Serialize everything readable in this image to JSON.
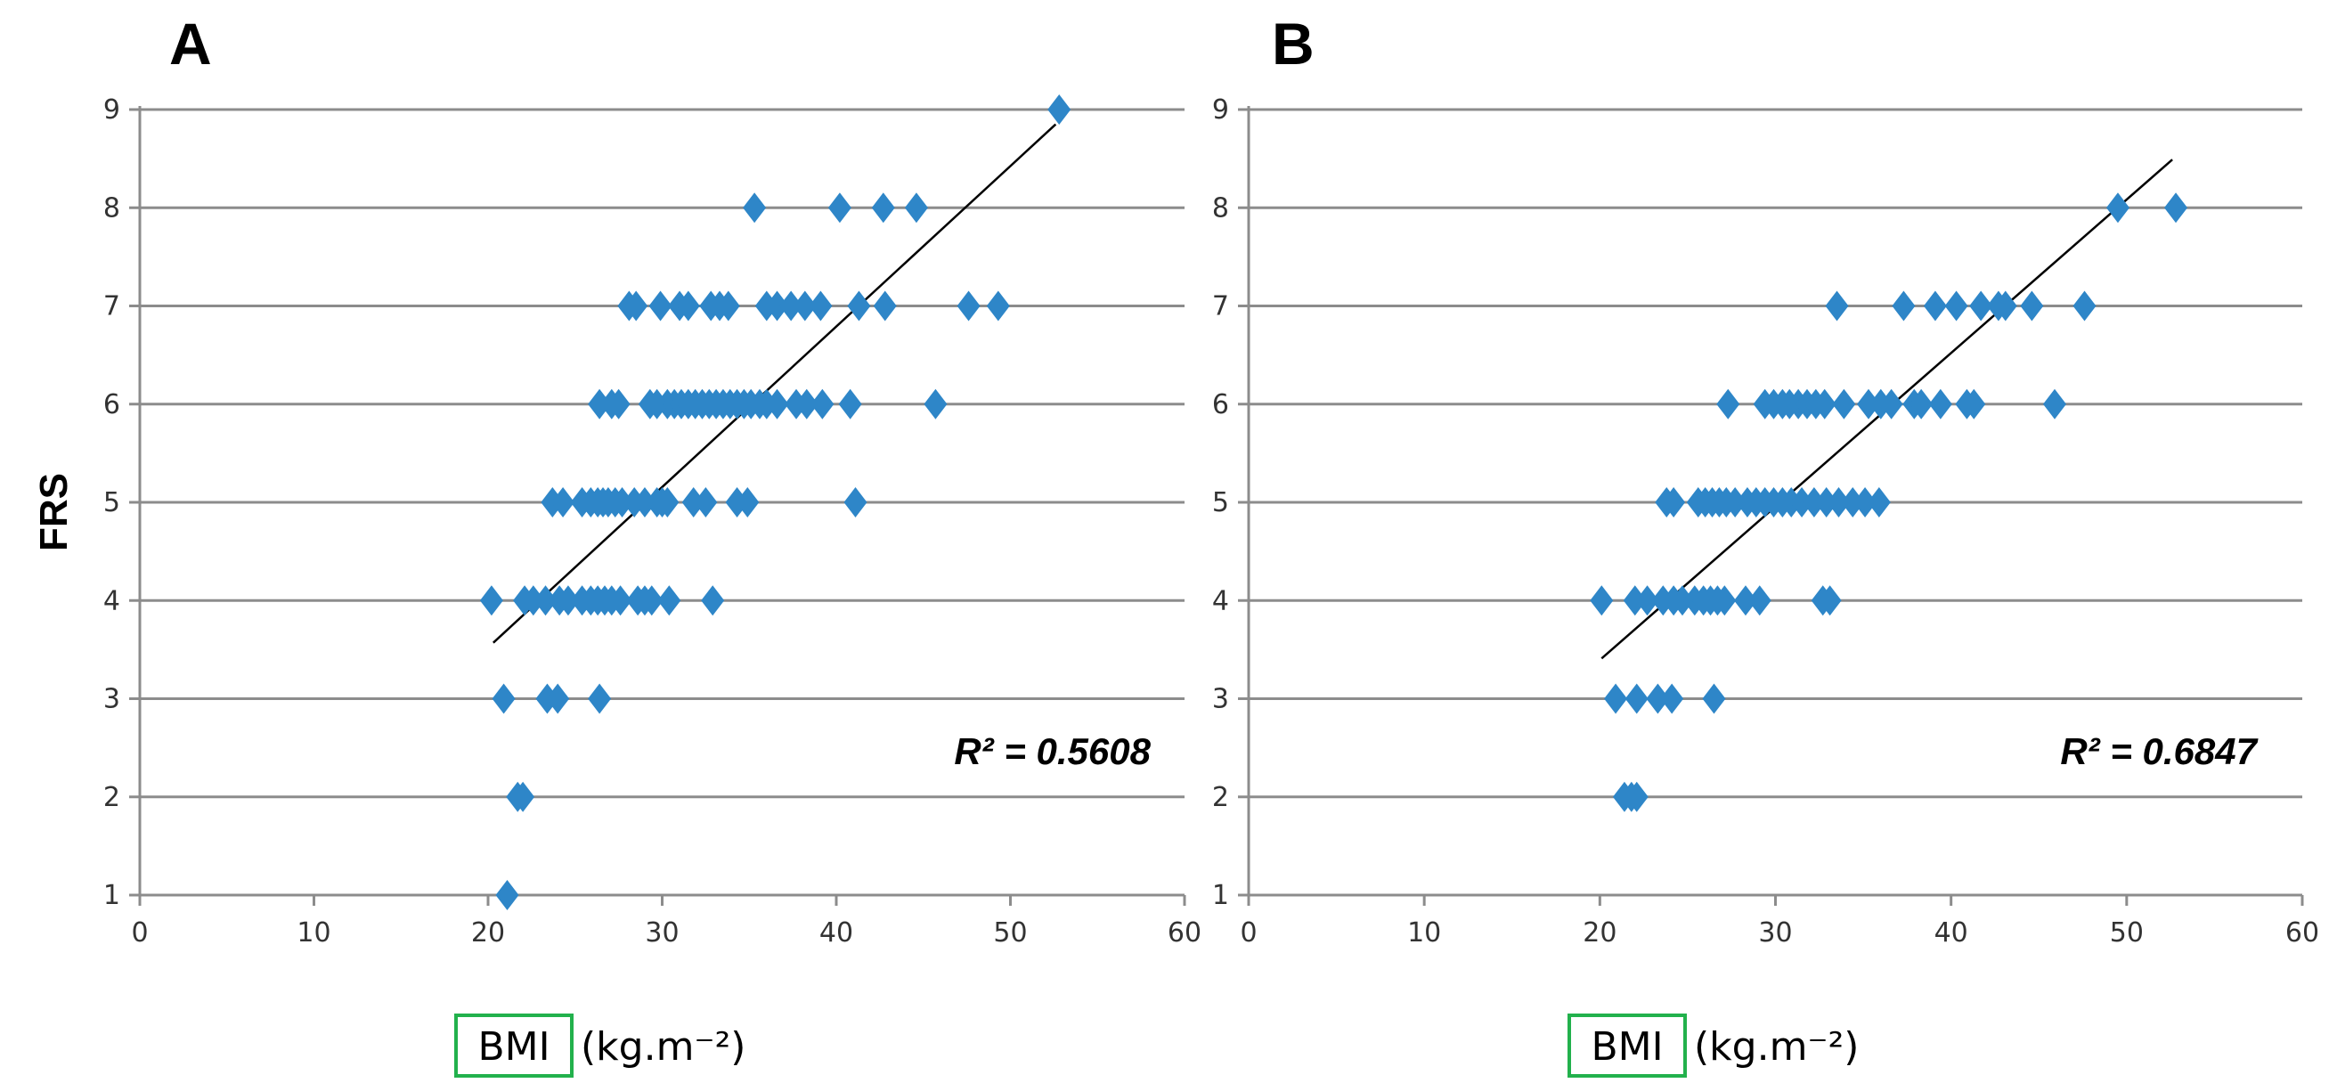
{
  "figure": {
    "y_axis_title": "FRS",
    "marker_color": "#2e86c8",
    "trendline_color": "#000000",
    "x_title_box_color": "#22b14c"
  },
  "chart_data": [
    {
      "type": "scatter",
      "panel": "A",
      "title": "A",
      "xlabel_boxed": "BMI",
      "xlabel_unit": "(kg.m⁻²)",
      "ylabel": "FRS",
      "xlim": [
        0,
        60
      ],
      "ylim": [
        1,
        9
      ],
      "xticks": [
        "0",
        "10",
        "20",
        "30",
        "40",
        "50",
        "60"
      ],
      "yticks": [
        "1",
        "2",
        "3",
        "4",
        "5",
        "6",
        "7",
        "8",
        "9"
      ],
      "grid": "horizontal",
      "r2_label": "R² = 0.5608",
      "trendline": {
        "x": [
          20.3,
          52.6
        ],
        "y": [
          3.57,
          8.85
        ]
      },
      "points": [
        {
          "x": 21.1,
          "y": 1
        },
        {
          "x": 21.7,
          "y": 2
        },
        {
          "x": 22.0,
          "y": 2
        },
        {
          "x": 20.9,
          "y": 3
        },
        {
          "x": 23.4,
          "y": 3
        },
        {
          "x": 24.0,
          "y": 3
        },
        {
          "x": 26.4,
          "y": 3
        },
        {
          "x": 20.2,
          "y": 4
        },
        {
          "x": 22.1,
          "y": 4
        },
        {
          "x": 22.6,
          "y": 4
        },
        {
          "x": 23.3,
          "y": 4
        },
        {
          "x": 24.1,
          "y": 4
        },
        {
          "x": 24.6,
          "y": 4
        },
        {
          "x": 25.4,
          "y": 4
        },
        {
          "x": 25.9,
          "y": 4
        },
        {
          "x": 26.3,
          "y": 4
        },
        {
          "x": 26.7,
          "y": 4
        },
        {
          "x": 27.1,
          "y": 4
        },
        {
          "x": 27.6,
          "y": 4
        },
        {
          "x": 28.6,
          "y": 4
        },
        {
          "x": 29.0,
          "y": 4
        },
        {
          "x": 29.4,
          "y": 4
        },
        {
          "x": 30.4,
          "y": 4
        },
        {
          "x": 32.9,
          "y": 4
        },
        {
          "x": 23.7,
          "y": 5
        },
        {
          "x": 24.3,
          "y": 5
        },
        {
          "x": 25.4,
          "y": 5
        },
        {
          "x": 25.9,
          "y": 5
        },
        {
          "x": 26.3,
          "y": 5
        },
        {
          "x": 26.6,
          "y": 5
        },
        {
          "x": 26.9,
          "y": 5
        },
        {
          "x": 27.3,
          "y": 5
        },
        {
          "x": 27.7,
          "y": 5
        },
        {
          "x": 28.4,
          "y": 5
        },
        {
          "x": 29.0,
          "y": 5
        },
        {
          "x": 29.7,
          "y": 5
        },
        {
          "x": 30.0,
          "y": 5
        },
        {
          "x": 30.3,
          "y": 5
        },
        {
          "x": 31.8,
          "y": 5
        },
        {
          "x": 32.5,
          "y": 5
        },
        {
          "x": 34.3,
          "y": 5
        },
        {
          "x": 34.9,
          "y": 5
        },
        {
          "x": 41.1,
          "y": 5
        },
        {
          "x": 26.4,
          "y": 6
        },
        {
          "x": 27.1,
          "y": 6
        },
        {
          "x": 27.5,
          "y": 6
        },
        {
          "x": 29.3,
          "y": 6
        },
        {
          "x": 29.7,
          "y": 6
        },
        {
          "x": 30.3,
          "y": 6
        },
        {
          "x": 30.7,
          "y": 6
        },
        {
          "x": 31.1,
          "y": 6
        },
        {
          "x": 31.5,
          "y": 6
        },
        {
          "x": 31.9,
          "y": 6
        },
        {
          "x": 32.3,
          "y": 6
        },
        {
          "x": 32.7,
          "y": 6
        },
        {
          "x": 33.1,
          "y": 6
        },
        {
          "x": 33.5,
          "y": 6
        },
        {
          "x": 33.9,
          "y": 6
        },
        {
          "x": 34.3,
          "y": 6
        },
        {
          "x": 34.7,
          "y": 6
        },
        {
          "x": 35.1,
          "y": 6
        },
        {
          "x": 35.6,
          "y": 6
        },
        {
          "x": 36.0,
          "y": 6
        },
        {
          "x": 36.6,
          "y": 6
        },
        {
          "x": 37.7,
          "y": 6
        },
        {
          "x": 38.3,
          "y": 6
        },
        {
          "x": 39.2,
          "y": 6
        },
        {
          "x": 40.8,
          "y": 6
        },
        {
          "x": 45.7,
          "y": 6
        },
        {
          "x": 28.1,
          "y": 7
        },
        {
          "x": 28.5,
          "y": 7
        },
        {
          "x": 29.9,
          "y": 7
        },
        {
          "x": 31.0,
          "y": 7
        },
        {
          "x": 31.5,
          "y": 7
        },
        {
          "x": 32.8,
          "y": 7
        },
        {
          "x": 33.3,
          "y": 7
        },
        {
          "x": 33.8,
          "y": 7
        },
        {
          "x": 36.0,
          "y": 7
        },
        {
          "x": 36.6,
          "y": 7
        },
        {
          "x": 37.4,
          "y": 7
        },
        {
          "x": 38.2,
          "y": 7
        },
        {
          "x": 39.1,
          "y": 7
        },
        {
          "x": 41.3,
          "y": 7
        },
        {
          "x": 42.8,
          "y": 7
        },
        {
          "x": 47.6,
          "y": 7
        },
        {
          "x": 49.3,
          "y": 7
        },
        {
          "x": 35.3,
          "y": 8
        },
        {
          "x": 40.2,
          "y": 8
        },
        {
          "x": 42.7,
          "y": 8
        },
        {
          "x": 44.6,
          "y": 8
        },
        {
          "x": 52.8,
          "y": 9
        }
      ]
    },
    {
      "type": "scatter",
      "panel": "B",
      "title": "B",
      "xlabel_boxed": "BMI",
      "xlabel_unit": "(kg.m⁻²)",
      "ylabel": "FRS",
      "xlim": [
        0,
        60
      ],
      "ylim": [
        1,
        9
      ],
      "xticks": [
        "0",
        "10",
        "20",
        "30",
        "40",
        "50",
        "60"
      ],
      "yticks": [
        "1",
        "2",
        "3",
        "4",
        "5",
        "6",
        "7",
        "8",
        "9"
      ],
      "grid": "horizontal",
      "r2_label": "R² = 0.6847",
      "trendline": {
        "x": [
          20.1,
          52.6
        ],
        "y": [
          3.41,
          8.49
        ]
      },
      "points": [
        {
          "x": 21.4,
          "y": 2
        },
        {
          "x": 21.8,
          "y": 2
        },
        {
          "x": 22.1,
          "y": 2
        },
        {
          "x": 20.9,
          "y": 3
        },
        {
          "x": 22.1,
          "y": 3
        },
        {
          "x": 23.3,
          "y": 3
        },
        {
          "x": 24.1,
          "y": 3
        },
        {
          "x": 26.5,
          "y": 3
        },
        {
          "x": 20.1,
          "y": 4
        },
        {
          "x": 22.0,
          "y": 4
        },
        {
          "x": 22.7,
          "y": 4
        },
        {
          "x": 23.6,
          "y": 4
        },
        {
          "x": 24.2,
          "y": 4
        },
        {
          "x": 24.7,
          "y": 4
        },
        {
          "x": 25.4,
          "y": 4
        },
        {
          "x": 25.9,
          "y": 4
        },
        {
          "x": 26.3,
          "y": 4
        },
        {
          "x": 26.7,
          "y": 4
        },
        {
          "x": 27.1,
          "y": 4
        },
        {
          "x": 28.3,
          "y": 4
        },
        {
          "x": 29.1,
          "y": 4
        },
        {
          "x": 32.7,
          "y": 4
        },
        {
          "x": 33.1,
          "y": 4
        },
        {
          "x": 23.8,
          "y": 5
        },
        {
          "x": 24.2,
          "y": 5
        },
        {
          "x": 25.6,
          "y": 5
        },
        {
          "x": 26.0,
          "y": 5
        },
        {
          "x": 26.4,
          "y": 5
        },
        {
          "x": 26.8,
          "y": 5
        },
        {
          "x": 27.2,
          "y": 5
        },
        {
          "x": 27.7,
          "y": 5
        },
        {
          "x": 28.4,
          "y": 5
        },
        {
          "x": 28.9,
          "y": 5
        },
        {
          "x": 29.4,
          "y": 5
        },
        {
          "x": 29.9,
          "y": 5
        },
        {
          "x": 30.4,
          "y": 5
        },
        {
          "x": 30.9,
          "y": 5
        },
        {
          "x": 31.5,
          "y": 5
        },
        {
          "x": 32.2,
          "y": 5
        },
        {
          "x": 32.9,
          "y": 5
        },
        {
          "x": 33.6,
          "y": 5
        },
        {
          "x": 34.4,
          "y": 5
        },
        {
          "x": 35.1,
          "y": 5
        },
        {
          "x": 35.9,
          "y": 5
        },
        {
          "x": 27.3,
          "y": 6
        },
        {
          "x": 29.4,
          "y": 6
        },
        {
          "x": 29.9,
          "y": 6
        },
        {
          "x": 30.4,
          "y": 6
        },
        {
          "x": 30.8,
          "y": 6
        },
        {
          "x": 31.3,
          "y": 6
        },
        {
          "x": 31.8,
          "y": 6
        },
        {
          "x": 32.3,
          "y": 6
        },
        {
          "x": 32.8,
          "y": 6
        },
        {
          "x": 33.9,
          "y": 6
        },
        {
          "x": 35.3,
          "y": 6
        },
        {
          "x": 36.0,
          "y": 6
        },
        {
          "x": 36.6,
          "y": 6
        },
        {
          "x": 37.9,
          "y": 6
        },
        {
          "x": 38.3,
          "y": 6
        },
        {
          "x": 39.4,
          "y": 6
        },
        {
          "x": 40.9,
          "y": 6
        },
        {
          "x": 41.3,
          "y": 6
        },
        {
          "x": 45.9,
          "y": 6
        },
        {
          "x": 33.5,
          "y": 7
        },
        {
          "x": 37.3,
          "y": 7
        },
        {
          "x": 39.1,
          "y": 7
        },
        {
          "x": 40.3,
          "y": 7
        },
        {
          "x": 41.7,
          "y": 7
        },
        {
          "x": 42.7,
          "y": 7
        },
        {
          "x": 43.1,
          "y": 7
        },
        {
          "x": 44.6,
          "y": 7
        },
        {
          "x": 47.6,
          "y": 7
        },
        {
          "x": 49.5,
          "y": 8
        },
        {
          "x": 52.8,
          "y": 8
        }
      ]
    }
  ]
}
